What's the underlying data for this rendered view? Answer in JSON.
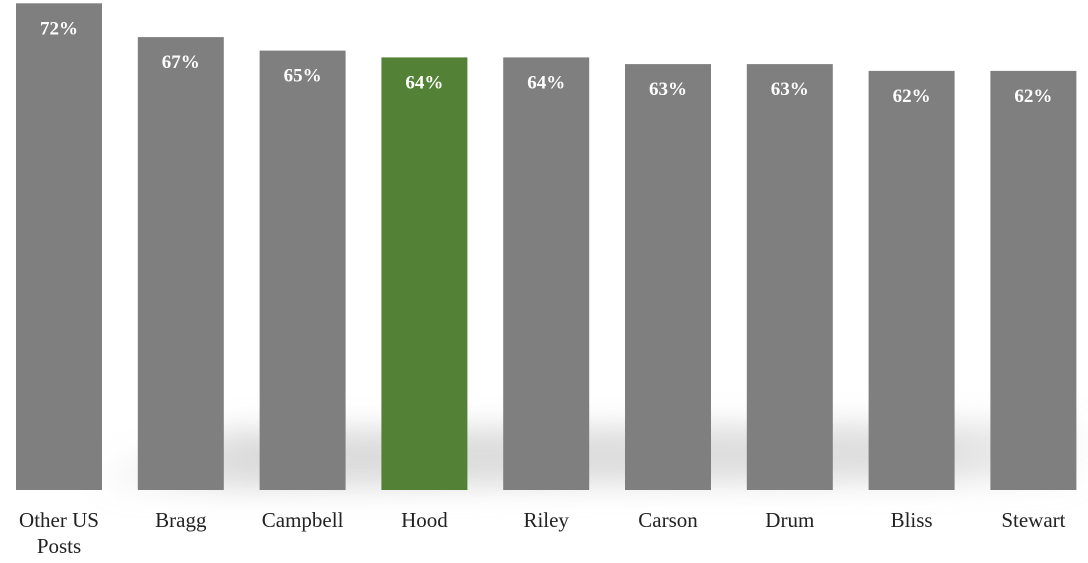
{
  "chart_data": {
    "type": "bar",
    "categories": [
      "Other US Posts",
      "Bragg",
      "Campbell",
      "Hood",
      "Riley",
      "Carson",
      "Drum",
      "Bliss",
      "Stewart"
    ],
    "category_lines": [
      [
        "Other US",
        "Posts"
      ],
      [
        "Bragg"
      ],
      [
        "Campbell"
      ],
      [
        "Hood"
      ],
      [
        "Riley"
      ],
      [
        "Carson"
      ],
      [
        "Drum"
      ],
      [
        "Bliss"
      ],
      [
        "Stewart"
      ]
    ],
    "values": [
      72,
      67,
      65,
      64,
      64,
      63,
      63,
      62,
      62
    ],
    "value_labels": [
      "72%",
      "67%",
      "65%",
      "64%",
      "64%",
      "63%",
      "63%",
      "62%",
      "62%"
    ],
    "highlight_index": 3,
    "colors": {
      "bar": "#7f7f7f",
      "highlight": "#538135",
      "label": "#ffffff",
      "category_text": "#222222"
    },
    "title": "",
    "xlabel": "",
    "ylabel": "",
    "axes_visible": false,
    "grid": false,
    "legend": "none"
  }
}
